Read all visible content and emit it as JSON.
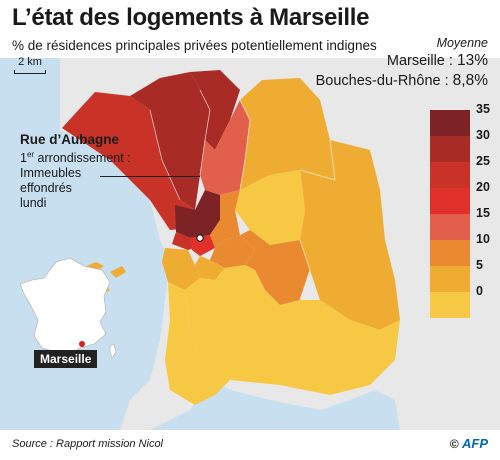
{
  "title": "L’état des logements à Marseille",
  "subtitle": "% de résidences principales privées potentiellement indignes",
  "scale": {
    "label": "2 km"
  },
  "averages": {
    "heading": "Moyenne",
    "items": [
      {
        "label": "Marseille : ",
        "value": "13%"
      },
      {
        "label": "Bouches-du-Rhône : ",
        "value": "8,8%"
      }
    ]
  },
  "legend": {
    "items": [
      {
        "label": "35",
        "color": "#7d2325"
      },
      {
        "label": "30",
        "color": "#a92b26"
      },
      {
        "label": "25",
        "color": "#c93226"
      },
      {
        "label": "20",
        "color": "#e0302a"
      },
      {
        "label": "15",
        "color": "#e2604b"
      },
      {
        "label": "10",
        "color": "#ea8a30"
      },
      {
        "label": "5",
        "color": "#eeac32"
      },
      {
        "label": "0",
        "color": "#f7c844"
      }
    ]
  },
  "callout": {
    "title": "Rue d’Aubagne",
    "line1_pre": "1",
    "line1_sup": "er",
    "line1_post": " arrondissement :",
    "line2": "Immeubles",
    "line3": "effondrés",
    "line4": "lundi"
  },
  "inset": {
    "label": "Marseille"
  },
  "colors": {
    "sea": "#c8dff0",
    "land": "#e8e8e8",
    "text": "#1a1a1a"
  },
  "source": "Source : Rapport mission Nicol",
  "credit": {
    "prefix": "© ",
    "brand": "AFP"
  }
}
